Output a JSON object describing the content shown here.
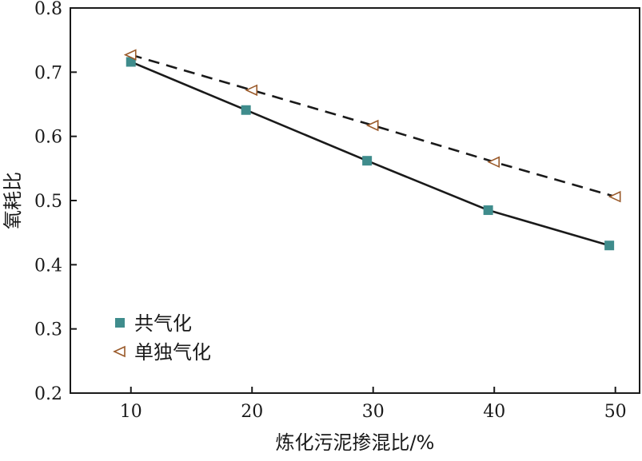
{
  "chart_data": {
    "type": "line",
    "xlabel": "炼化污泥掺混比/%",
    "ylabel": "氧耗比",
    "xlim": [
      5,
      52
    ],
    "ylim": [
      0.2,
      0.8
    ],
    "x_ticks": [
      10,
      20,
      30,
      40,
      50
    ],
    "y_ticks": [
      0.2,
      0.3,
      0.4,
      0.5,
      0.6,
      0.7,
      0.8
    ],
    "x_tick_labels": [
      "10",
      "20",
      "30",
      "40",
      "50"
    ],
    "y_tick_labels": [
      "0.2",
      "0.3",
      "0.4",
      "0.5",
      "0.6",
      "0.7",
      "0.8"
    ],
    "grid": false,
    "legend_position": "bottom-left",
    "series": [
      {
        "name": "共气化",
        "x": [
          10,
          19.5,
          29.5,
          39.5,
          49.5
        ],
        "y": [
          0.716,
          0.641,
          0.562,
          0.485,
          0.43
        ],
        "color": "#3f8c8c",
        "line_style": "solid",
        "marker": "square"
      },
      {
        "name": "单独气化",
        "x": [
          10,
          20,
          30,
          40,
          50
        ],
        "y": [
          0.727,
          0.672,
          0.617,
          0.56,
          0.506
        ],
        "color": "#9a5a2a",
        "line_style": "dashed",
        "marker": "left-triangle"
      }
    ]
  }
}
